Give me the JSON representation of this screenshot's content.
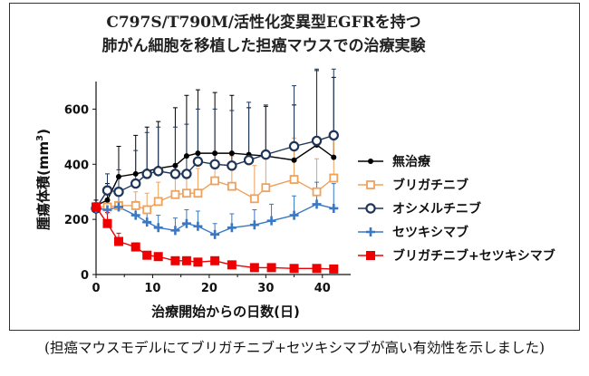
{
  "caption": "(担癌マウスモデルにてブリガチニブ+セツキシマブが高い有効性を示しました)",
  "chart_data": {
    "type": "line",
    "title_lines": [
      "C797S/T790M/活性化変異型EGFRを持つ",
      "肺がん細胞を移植した担癌マウスでの治療実験"
    ],
    "xlabel": "治療開始からの日数(日)",
    "ylabel_main": "腫瘍体積(mm",
    "ylabel_sup": "3",
    "ylabel_tail": ")",
    "xlim": [
      0,
      45
    ],
    "ylim": [
      0,
      700
    ],
    "xticks": [
      0,
      10,
      20,
      30,
      40
    ],
    "yticks": [
      0,
      200,
      400,
      600
    ],
    "grid": false,
    "legend_position": "right",
    "series": [
      {
        "name": "無治療",
        "color": "#000000",
        "marker": "dot",
        "x": [
          0,
          2,
          4,
          7,
          9,
          11,
          14,
          16,
          18,
          21,
          24,
          27,
          30,
          35,
          39,
          42
        ],
        "y": [
          250,
          270,
          355,
          365,
          375,
          385,
          395,
          430,
          440,
          440,
          440,
          435,
          430,
          415,
          470,
          425
        ],
        "err": [
          20,
          60,
          110,
          140,
          160,
          170,
          210,
          220,
          230,
          220,
          210,
          170,
          180,
          200,
          270,
          290
        ]
      },
      {
        "name": "ブリガチニブ",
        "color": "#f0a15a",
        "marker": "open-square",
        "x": [
          0,
          2,
          4,
          7,
          9,
          11,
          14,
          16,
          18,
          21,
          24,
          28,
          30,
          35,
          39,
          42
        ],
        "y": [
          245,
          245,
          250,
          250,
          235,
          265,
          290,
          295,
          295,
          340,
          320,
          275,
          315,
          345,
          300,
          350
        ],
        "err": [
          15,
          30,
          40,
          50,
          60,
          70,
          80,
          80,
          90,
          100,
          110,
          120,
          120,
          150,
          120,
          160
        ]
      },
      {
        "name": "オシメルチニブ",
        "color": "#1f3557",
        "marker": "open-circle",
        "x": [
          0,
          2,
          4,
          7,
          9,
          11,
          14,
          16,
          18,
          21,
          24,
          27,
          30,
          35,
          39,
          42
        ],
        "y": [
          240,
          305,
          300,
          330,
          365,
          375,
          365,
          365,
          410,
          400,
          395,
          415,
          435,
          465,
          485,
          505
        ],
        "err": [
          20,
          60,
          80,
          120,
          150,
          160,
          170,
          180,
          190,
          200,
          200,
          210,
          180,
          220,
          260,
          240
        ]
      },
      {
        "name": "セツキシマブ",
        "color": "#3a78c4",
        "marker": "plus",
        "x": [
          0,
          2,
          4,
          7,
          9,
          11,
          14,
          16,
          18,
          21,
          24,
          28,
          31,
          35,
          39,
          42
        ],
        "y": [
          240,
          235,
          245,
          215,
          190,
          170,
          160,
          185,
          175,
          145,
          170,
          180,
          195,
          215,
          255,
          240
        ],
        "err": [
          20,
          30,
          40,
          50,
          50,
          45,
          45,
          50,
          55,
          40,
          50,
          55,
          60,
          70,
          80,
          90
        ]
      },
      {
        "name": "ブリガチニブ+セツキシマブ",
        "color": "#ee0000",
        "marker": "filled-square",
        "x": [
          0,
          2,
          4,
          7,
          9,
          11,
          14,
          16,
          18,
          21,
          24,
          28,
          31,
          35,
          39,
          42
        ],
        "y": [
          245,
          185,
          120,
          100,
          70,
          65,
          50,
          50,
          45,
          50,
          35,
          25,
          25,
          22,
          22,
          20
        ],
        "err": [
          15,
          40,
          30,
          15,
          10,
          10,
          10,
          8,
          8,
          10,
          8,
          6,
          6,
          5,
          5,
          5
        ]
      }
    ]
  }
}
